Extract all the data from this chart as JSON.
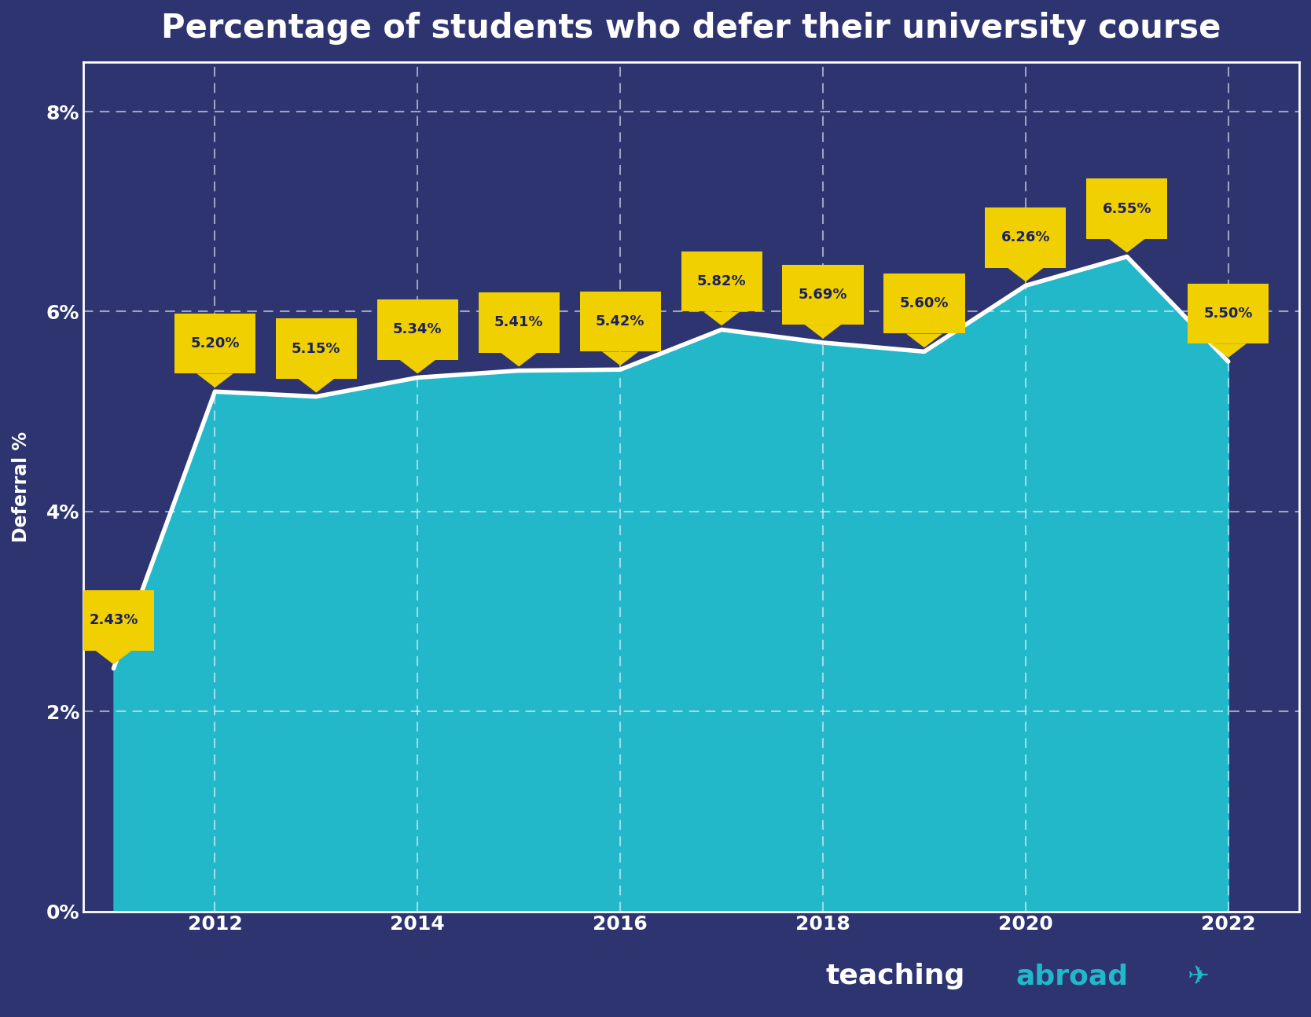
{
  "title": "Percentage of students who defer their university course",
  "years": [
    2011,
    2012,
    2013,
    2014,
    2015,
    2016,
    2017,
    2018,
    2019,
    2020,
    2021,
    2022
  ],
  "values": [
    2.43,
    5.2,
    5.15,
    5.34,
    5.41,
    5.42,
    5.82,
    5.69,
    5.6,
    6.26,
    6.55,
    5.5
  ],
  "labels": [
    "2.43%",
    "5.20%",
    "5.15%",
    "5.34%",
    "5.41%",
    "5.42%",
    "5.82%",
    "5.69%",
    "5.60%",
    "6.26%",
    "6.55%",
    "5.50%"
  ],
  "bg_color": "#2d3470",
  "chart_fill_color": "#22b8ca",
  "line_color": "#ffffff",
  "label_bg_color": "#f0d000",
  "label_text_color": "#1a2060",
  "ylabel": "Deferral %",
  "xtick_labels": [
    "2012",
    "2014",
    "2016",
    "2018",
    "2020",
    "2022"
  ],
  "xtick_positions": [
    2012,
    2014,
    2016,
    2018,
    2020,
    2022
  ],
  "ytick_labels": [
    "0%",
    "2%",
    "4%",
    "6%",
    "8%"
  ],
  "ytick_values": [
    0,
    2,
    4,
    6,
    8
  ],
  "ylim": [
    0,
    8.5
  ],
  "xlim": [
    2010.7,
    2022.7
  ],
  "grid_color": "#ffffff",
  "tick_color": "#ffffff",
  "title_color": "#ffffff",
  "logo_teaching_color": "#ffffff",
  "logo_abroad_color": "#22b8ca",
  "border_color": "#ffffff"
}
